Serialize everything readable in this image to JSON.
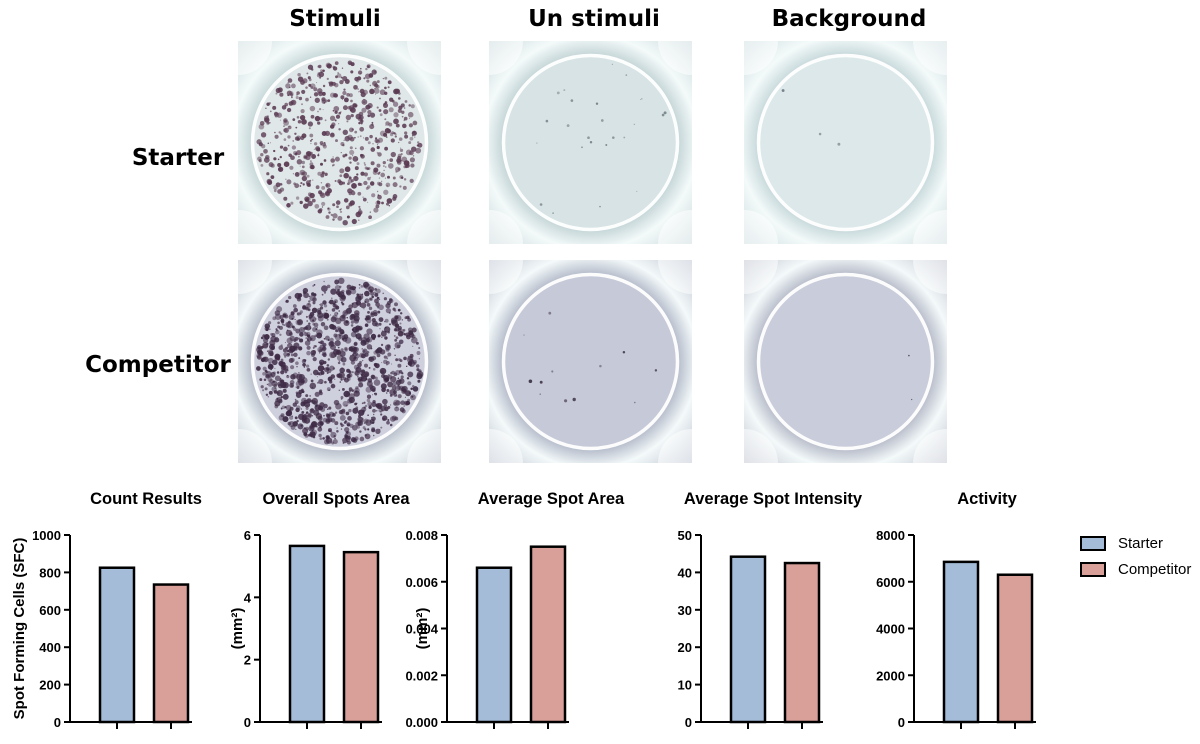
{
  "columns": [
    "Stimuli",
    "Un stimuli",
    "Background"
  ],
  "rows": [
    "Starter",
    "Competitor"
  ],
  "colors": {
    "starter": "#a4bcd8",
    "competitor": "#d9a09a"
  },
  "legend": [
    {
      "name": "Starter",
      "color": "#a4bcd8"
    },
    {
      "name": "Competitor",
      "color": "#d9a09a"
    }
  ],
  "chart_data": [
    {
      "type": "bar",
      "title": "Count Results",
      "ylabel": "Spot Forming Cells (SFC)",
      "categories": [
        "Starter",
        "Competitor"
      ],
      "values": [
        825,
        735
      ],
      "ylim": [
        0,
        1000
      ],
      "ticks": [
        "0",
        "200",
        "400",
        "600",
        "800",
        "1000"
      ]
    },
    {
      "type": "bar",
      "title": "Overall Spots Area",
      "ylabel": "(mm²)",
      "categories": [
        "Starter",
        "Competitor"
      ],
      "values": [
        5.65,
        5.45
      ],
      "ylim": [
        0,
        6
      ],
      "ticks": [
        "0",
        "2",
        "4",
        "6"
      ]
    },
    {
      "type": "bar",
      "title": "Average Spot Area",
      "ylabel": "(mm²)",
      "categories": [
        "Starter",
        "Competitor"
      ],
      "values": [
        0.0066,
        0.0075
      ],
      "ylim": [
        0,
        0.008
      ],
      "ticks": [
        "0.000",
        "0.002",
        "0.004",
        "0.006",
        "0.008"
      ]
    },
    {
      "type": "bar",
      "title": "Average Spot Intensity",
      "ylabel": "",
      "categories": [
        "Starter",
        "Competitor"
      ],
      "values": [
        44.2,
        42.5
      ],
      "ylim": [
        0,
        50
      ],
      "ticks": [
        "0",
        "10",
        "20",
        "30",
        "40",
        "50"
      ]
    },
    {
      "type": "bar",
      "title": "Activity",
      "ylabel": "",
      "categories": [
        "Starter",
        "Competitor"
      ],
      "values": [
        6850,
        6300
      ],
      "ylim": [
        0,
        8000
      ],
      "ticks": [
        "0",
        "2000",
        "4000",
        "6000",
        "8000"
      ]
    }
  ]
}
